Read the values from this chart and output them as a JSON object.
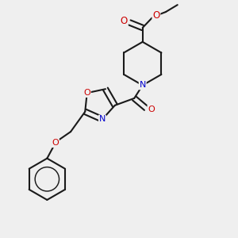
{
  "bg_color": "#efefef",
  "bond_color": "#1a1a1a",
  "nitrogen_color": "#0000cc",
  "oxygen_color": "#cc0000",
  "lw": 1.5,
  "dbo": 0.012,
  "xlim": [
    0.0,
    1.0
  ],
  "ylim": [
    0.0,
    1.0
  ]
}
